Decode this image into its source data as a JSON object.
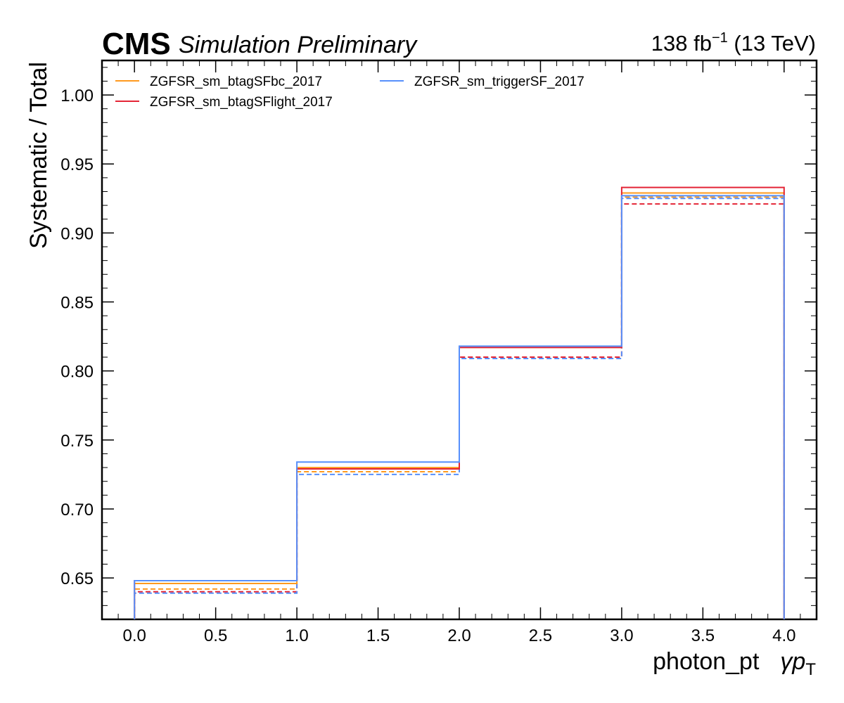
{
  "header": {
    "experiment": "CMS",
    "status": "Simulation Preliminary",
    "lumi_value": "138 fb",
    "lumi_exponent": "−1",
    "energy": "(13 TeV)"
  },
  "chart_data": {
    "type": "line",
    "style": "step",
    "xlabel": "photon_pt",
    "xlabel_suffix": "γp",
    "xlabel_suffix_sub": "T",
    "ylabel": "Systematic / Total",
    "xlim": [
      -0.2,
      4.2
    ],
    "ylim": [
      0.62,
      1.025
    ],
    "grid": false,
    "legend_position": "top-left",
    "x_ticks": [
      "0.0",
      "0.5",
      "1.0",
      "1.5",
      "2.0",
      "2.5",
      "3.0",
      "3.5",
      "4.0"
    ],
    "y_ticks": [
      "0.65",
      "0.70",
      "0.75",
      "0.80",
      "0.85",
      "0.90",
      "0.95",
      "1.00"
    ],
    "bin_edges": [
      0,
      1,
      2,
      3,
      4
    ],
    "series": [
      {
        "name": "ZGFSR_sm_btagSFbc_2017",
        "color": "#ff9a1f",
        "line": "solid",
        "values": [
          0.646,
          0.73,
          0.817,
          0.929
        ]
      },
      {
        "name": "ZGFSR_sm_btagSFbc_2017",
        "color": "#ff9a1f",
        "line": "dashed",
        "values": [
          0.642,
          0.727,
          0.81,
          0.926
        ]
      },
      {
        "name": "ZGFSR_sm_btagSFlight_2017",
        "color": "#e42536",
        "line": "solid",
        "values": [
          0.648,
          0.729,
          0.817,
          0.933
        ]
      },
      {
        "name": "ZGFSR_sm_btagSFlight_2017",
        "color": "#e42536",
        "line": "dashed",
        "values": [
          0.64,
          0.729,
          0.81,
          0.921
        ]
      },
      {
        "name": "ZGFSR_sm_triggerSF_2017",
        "color": "#5790fc",
        "line": "solid",
        "values": [
          0.648,
          0.734,
          0.818,
          0.927
        ]
      },
      {
        "name": "ZGFSR_sm_triggerSF_2017",
        "color": "#5790fc",
        "line": "dashed",
        "values": [
          0.639,
          0.725,
          0.809,
          0.925
        ]
      }
    ],
    "legend": [
      {
        "label": "ZGFSR_sm_btagSFbc_2017",
        "color": "#ff9a1f"
      },
      {
        "label": "ZGFSR_sm_btagSFlight_2017",
        "color": "#e42536"
      },
      {
        "label": "ZGFSR_sm_triggerSF_2017",
        "color": "#5790fc"
      }
    ]
  }
}
